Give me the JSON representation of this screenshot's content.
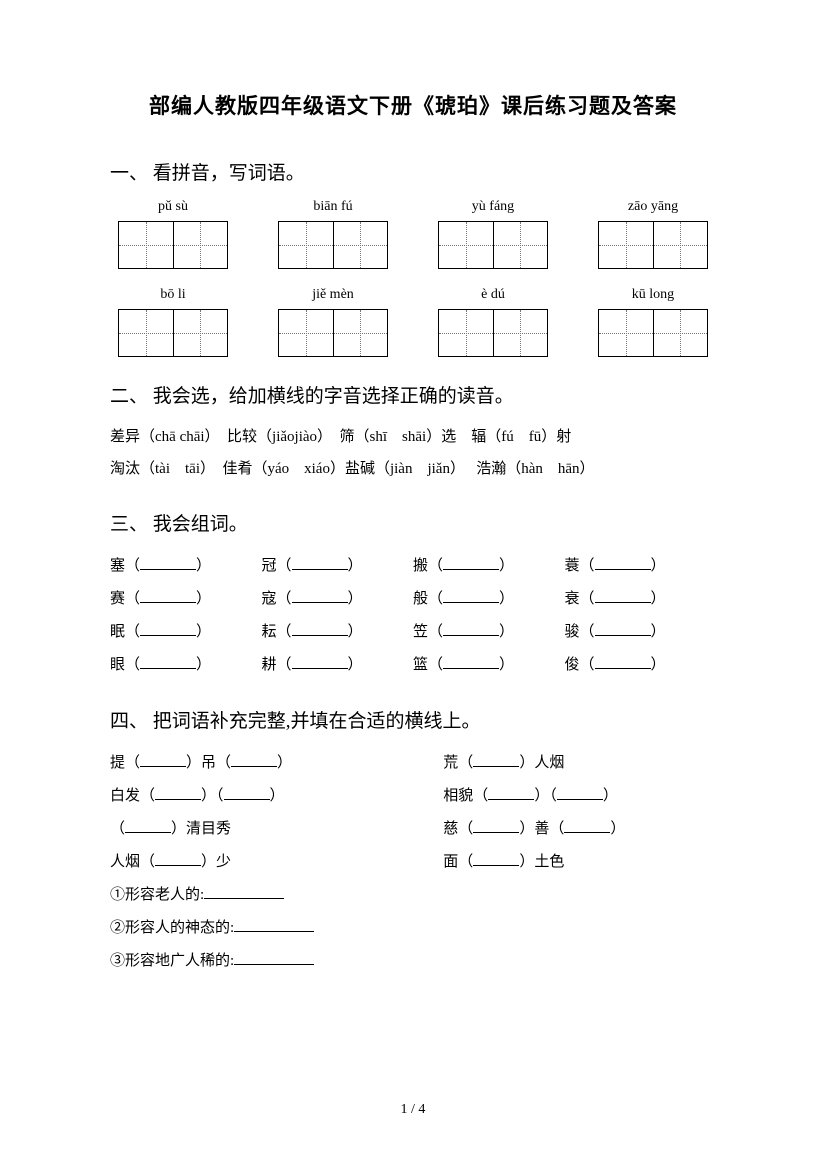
{
  "title": "部编人教版四年级语文下册《琥珀》课后练习题及答案",
  "section1": {
    "heading": "一、 看拼音，写词语。",
    "row1": [
      "pǔ sù",
      "biān fú",
      "yù fáng",
      "zāo yāng"
    ],
    "row2": [
      "bō li",
      "jiě mèn",
      "è dú",
      "kū long"
    ]
  },
  "section2": {
    "heading": "二、 我会选，给加横线的字音选择正确的读音。",
    "line1": "差异（chā chāi）　比较（jiǎojiào）　筛（shī　shāi）选　辐（fú　fū）射",
    "line2": "淘汰（tài　tāi）　佳肴（yáo　xiáo）盐碱（jiàn　jiǎn）　 浩瀚（hàn　hān）"
  },
  "section3": {
    "heading": "三、 我会组词。",
    "rows": [
      [
        "塞",
        "冠",
        "搬",
        "蓑"
      ],
      [
        "赛",
        "寇",
        "般",
        "衰"
      ],
      [
        "眠",
        "耘",
        "笠",
        "骏"
      ],
      [
        "眼",
        "耕",
        "篮",
        "俊"
      ]
    ]
  },
  "section4": {
    "heading": "四、 把词语补充完整,并填在合适的横线上。",
    "pairs": [
      {
        "l_pre": "提（",
        "l_mid": "）吊（",
        "l_post": "）",
        "r_pre": "荒（",
        "r_post": "）人烟"
      },
      {
        "l_pre": "白发（",
        "l_mid": "）（",
        "l_post": "）",
        "r_pre": "相貌（",
        "r_mid": "）（",
        "r_post": "）"
      },
      {
        "l_pre": "（",
        "l_post": "）清目秀",
        "r_pre": "慈（",
        "r_mid": "）善（",
        "r_post": "）"
      },
      {
        "l_pre": "人烟（",
        "l_post": "）少",
        "r_pre": "面（",
        "r_post": "）土色"
      }
    ],
    "desc": [
      "①形容老人的:",
      "②形容人的神态的:",
      "③形容地广人稀的:"
    ]
  },
  "footer": "1 / 4"
}
